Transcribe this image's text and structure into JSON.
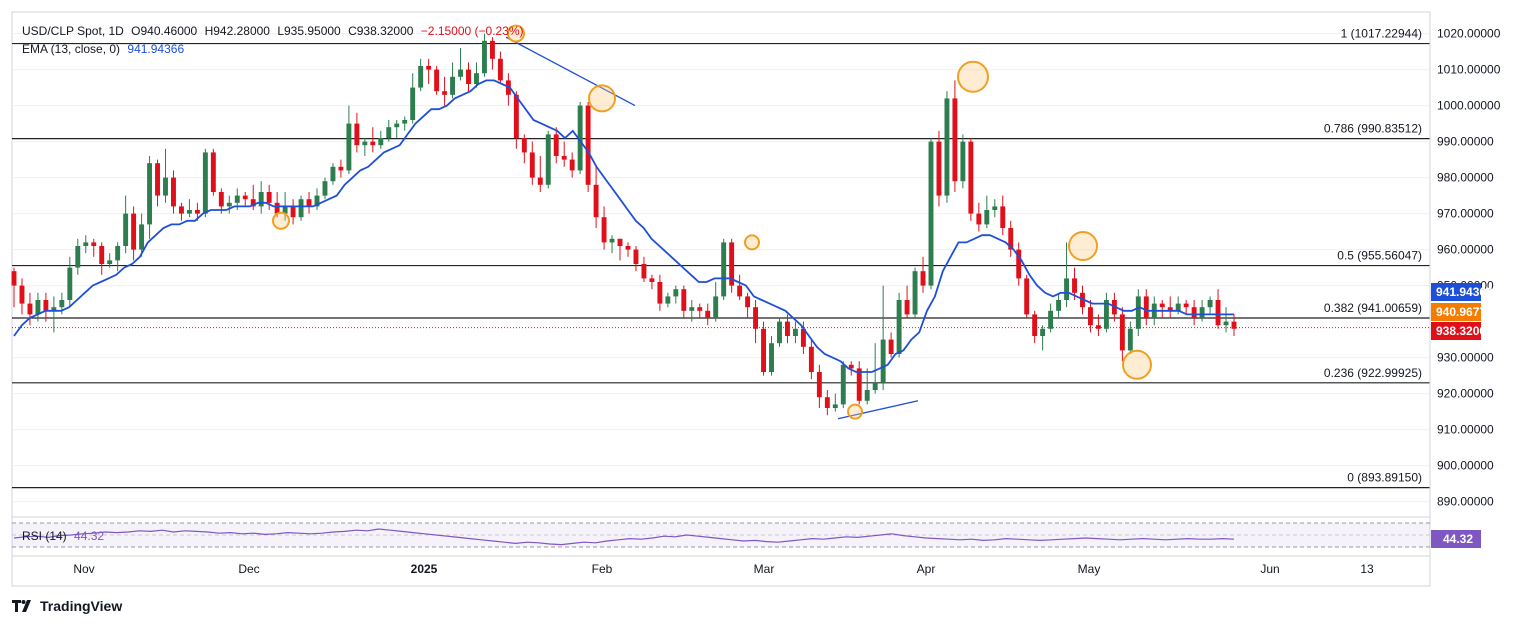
{
  "header": {
    "symbol": "USD/CLP Spot, 1D",
    "open": "O940.46000",
    "high": "H942.28000",
    "low": "L935.95000",
    "close": "C938.32000",
    "change": "−2.15000 (−0.23%)",
    "ema_label": "EMA (13, close, 0)",
    "ema_value": "941.94366"
  },
  "rsi": {
    "label": "RSI (14)",
    "value": "44.32",
    "badge": "44.32"
  },
  "footer": {
    "brand": "TradingView"
  },
  "colors": {
    "up": "#2e7d4f",
    "down": "#e0101b",
    "ema": "#1e4fd8",
    "fib": "#222222",
    "rsi": "#7e57c2",
    "marker": "#f0a020"
  },
  "price_labels": {
    "ema": "941.94366",
    "open": "940.96772",
    "last": "938.32000"
  },
  "chart_data": {
    "type": "candlestick",
    "x_labels": [
      "Nov",
      "Dec",
      "2025",
      "Feb",
      "Mar",
      "Apr",
      "May",
      "Jun",
      "13"
    ],
    "y_ticks": [
      "1020.00000",
      "1010.00000",
      "1000.00000",
      "990.00000",
      "980.00000",
      "970.00000",
      "960.00000",
      "950.00000",
      "930.00000",
      "920.00000",
      "910.00000",
      "900.00000",
      "890.00000"
    ],
    "ylim": [
      886,
      1026
    ],
    "fib_levels": [
      {
        "label": "1 (1017.22944)",
        "value": 1017.22944
      },
      {
        "label": "0.786 (990.83512)",
        "value": 990.83512
      },
      {
        "label": "0.5 (955.56047)",
        "value": 955.56047
      },
      {
        "label": "0.382 (941.00659)",
        "value": 941.00659
      },
      {
        "label": "0.236 (922.99925)",
        "value": 922.99925
      },
      {
        "label": "0 (893.89150)",
        "value": 893.8915
      }
    ],
    "candles": [
      [
        954,
        950,
        955,
        944
      ],
      [
        950,
        945,
        952,
        942
      ],
      [
        945,
        942,
        948,
        939
      ],
      [
        942,
        946,
        948,
        940
      ],
      [
        946,
        943,
        948,
        940
      ],
      [
        943,
        944,
        947,
        937
      ],
      [
        944,
        946,
        948,
        942
      ],
      [
        946,
        955,
        958,
        944
      ],
      [
        955,
        961,
        963,
        953
      ],
      [
        961,
        962,
        964,
        959
      ],
      [
        962,
        961,
        963,
        958
      ],
      [
        961,
        956,
        962,
        953
      ],
      [
        956,
        957,
        959,
        955
      ],
      [
        957,
        961,
        962,
        954
      ],
      [
        961,
        970,
        975,
        959
      ],
      [
        970,
        960,
        972,
        957
      ],
      [
        960,
        967,
        970,
        958
      ],
      [
        967,
        984,
        986,
        963
      ],
      [
        984,
        975,
        985,
        972
      ],
      [
        975,
        980,
        988,
        973
      ],
      [
        980,
        972,
        982,
        970
      ],
      [
        972,
        970,
        973,
        968
      ],
      [
        970,
        971,
        974,
        969
      ],
      [
        971,
        970,
        973,
        968
      ],
      [
        970,
        987,
        988,
        969
      ],
      [
        987,
        976,
        988,
        975
      ],
      [
        976,
        972,
        977,
        970
      ],
      [
        972,
        973,
        975,
        970
      ],
      [
        973,
        975,
        977,
        971
      ],
      [
        975,
        974,
        976,
        972
      ],
      [
        974,
        972,
        978,
        971
      ],
      [
        972,
        976,
        979,
        970
      ],
      [
        976,
        973,
        978,
        971
      ],
      [
        973,
        970,
        976,
        969
      ],
      [
        970,
        972,
        976,
        968
      ],
      [
        972,
        969,
        974,
        967
      ],
      [
        969,
        974,
        975,
        968
      ],
      [
        974,
        972,
        976,
        970
      ],
      [
        972,
        975,
        977,
        971
      ],
      [
        975,
        979,
        980,
        974
      ],
      [
        979,
        983,
        984,
        978
      ],
      [
        983,
        982,
        985,
        980
      ],
      [
        982,
        995,
        1000,
        981
      ],
      [
        995,
        989,
        998,
        987
      ],
      [
        989,
        990,
        991,
        986
      ],
      [
        990,
        989,
        994,
        987
      ],
      [
        989,
        991,
        993,
        988
      ],
      [
        991,
        994,
        996,
        990
      ],
      [
        994,
        995,
        996,
        991
      ],
      [
        995,
        996,
        997,
        993
      ],
      [
        996,
        1005,
        1009,
        995
      ],
      [
        1005,
        1011,
        1013,
        1004
      ],
      [
        1011,
        1010,
        1013,
        1006
      ],
      [
        1010,
        1004,
        1011,
        1003
      ],
      [
        1004,
        1003,
        1008,
        1000
      ],
      [
        1003,
        1008,
        1012,
        1002
      ],
      [
        1008,
        1010,
        1016,
        1007
      ],
      [
        1010,
        1006,
        1012,
        1004
      ],
      [
        1006,
        1009,
        1012,
        1005
      ],
      [
        1009,
        1018,
        1020,
        1008
      ],
      [
        1018,
        1013,
        1019,
        1010
      ],
      [
        1013,
        1007,
        1015,
        1006
      ],
      [
        1007,
        1003,
        1009,
        1000
      ],
      [
        1003,
        991,
        1004,
        988
      ],
      [
        991,
        987,
        992,
        984
      ],
      [
        987,
        980,
        990,
        978
      ],
      [
        980,
        978,
        986,
        976
      ],
      [
        978,
        992,
        993,
        977
      ],
      [
        992,
        986,
        994,
        984
      ],
      [
        986,
        985,
        990,
        983
      ],
      [
        985,
        982,
        987,
        980
      ],
      [
        982,
        1000,
        1001,
        981
      ],
      [
        1000,
        978,
        1001,
        976
      ],
      [
        978,
        969,
        983,
        966
      ],
      [
        969,
        962,
        972,
        960
      ],
      [
        962,
        963,
        964,
        959
      ],
      [
        963,
        961,
        963,
        957
      ],
      [
        961,
        960,
        962,
        958
      ],
      [
        960,
        956,
        961,
        954
      ],
      [
        956,
        952,
        958,
        951
      ],
      [
        952,
        951,
        953,
        949
      ],
      [
        951,
        945,
        953,
        943
      ],
      [
        945,
        947,
        948,
        944
      ],
      [
        947,
        949,
        950,
        945
      ],
      [
        949,
        943,
        950,
        941
      ],
      [
        943,
        944,
        946,
        940
      ],
      [
        944,
        943,
        945,
        941
      ],
      [
        943,
        941,
        945,
        939
      ],
      [
        941,
        947,
        951,
        940
      ],
      [
        947,
        962,
        963,
        946
      ],
      [
        962,
        950,
        963,
        948
      ],
      [
        950,
        947,
        953,
        946
      ],
      [
        947,
        944,
        948,
        941
      ],
      [
        944,
        938,
        946,
        934
      ],
      [
        938,
        926,
        940,
        925
      ],
      [
        926,
        934,
        936,
        925
      ],
      [
        934,
        940,
        941,
        933
      ],
      [
        940,
        936,
        942,
        934
      ],
      [
        936,
        938,
        940,
        934
      ],
      [
        938,
        933,
        940,
        931
      ],
      [
        933,
        926,
        935,
        924
      ],
      [
        926,
        919,
        928,
        916
      ],
      [
        919,
        916,
        921,
        914
      ],
      [
        916,
        917,
        920,
        915
      ],
      [
        917,
        928,
        929,
        916
      ],
      [
        928,
        927,
        929,
        925
      ],
      [
        927,
        918,
        929,
        917
      ],
      [
        918,
        921,
        927,
        917
      ],
      [
        921,
        923,
        934,
        920
      ],
      [
        923,
        935,
        950,
        921
      ],
      [
        935,
        931,
        937,
        930
      ],
      [
        931,
        946,
        948,
        930
      ],
      [
        946,
        942,
        950,
        941
      ],
      [
        942,
        954,
        955,
        941
      ],
      [
        954,
        950,
        958,
        948
      ],
      [
        950,
        990,
        991,
        949
      ],
      [
        990,
        975,
        993,
        972
      ],
      [
        975,
        1002,
        1004,
        973
      ],
      [
        1002,
        979,
        1007,
        976
      ],
      [
        979,
        990,
        992,
        977
      ],
      [
        990,
        970,
        991,
        968
      ],
      [
        970,
        967,
        973,
        965
      ],
      [
        967,
        971,
        975,
        966
      ],
      [
        971,
        972,
        974,
        969
      ],
      [
        972,
        966,
        975,
        964
      ],
      [
        966,
        960,
        968,
        958
      ],
      [
        960,
        952,
        962,
        950
      ],
      [
        952,
        942,
        953,
        941
      ],
      [
        942,
        936,
        943,
        934
      ],
      [
        936,
        938,
        939,
        932
      ],
      [
        938,
        943,
        945,
        937
      ],
      [
        943,
        946,
        948,
        941
      ],
      [
        946,
        952,
        962,
        944
      ],
      [
        952,
        948,
        955,
        946
      ],
      [
        948,
        944,
        950,
        942
      ],
      [
        944,
        939,
        946,
        937
      ],
      [
        939,
        938,
        942,
        936
      ],
      [
        938,
        946,
        948,
        937
      ],
      [
        946,
        942,
        948,
        940
      ],
      [
        942,
        932,
        944,
        929
      ],
      [
        932,
        938,
        940,
        931
      ],
      [
        938,
        947,
        949,
        936
      ],
      [
        947,
        941,
        949,
        939
      ],
      [
        941,
        945,
        947,
        939
      ],
      [
        945,
        944,
        946,
        941
      ],
      [
        944,
        943,
        947,
        941
      ],
      [
        943,
        945,
        947,
        942
      ],
      [
        945,
        944,
        946,
        942
      ],
      [
        944,
        941,
        946,
        939
      ],
      [
        941,
        944,
        946,
        940
      ],
      [
        944,
        946,
        947,
        942
      ],
      [
        946,
        939,
        949,
        938
      ],
      [
        939,
        940,
        944,
        937
      ],
      [
        940,
        938,
        942,
        936
      ]
    ],
    "ema13": [
      936,
      939,
      941,
      942,
      943,
      943,
      943,
      944,
      946,
      948,
      950,
      951,
      952,
      953,
      955,
      956,
      958,
      962,
      964,
      966,
      967,
      967,
      968,
      968,
      970,
      971,
      971,
      971,
      972,
      972,
      972,
      973,
      973,
      972,
      972,
      972,
      972,
      972,
      972,
      973,
      974,
      975,
      978,
      980,
      982,
      983,
      985,
      987,
      988,
      989,
      992,
      995,
      997,
      999,
      999,
      1000,
      1002,
      1003,
      1004,
      1006,
      1007,
      1007,
      1006,
      1005,
      1002,
      999,
      996,
      995,
      994,
      993,
      991,
      993,
      990,
      987,
      983,
      980,
      977,
      974,
      971,
      968,
      966,
      963,
      961,
      959,
      957,
      955,
      953,
      951,
      951,
      952,
      952,
      952,
      951,
      950,
      947,
      946,
      945,
      944,
      943,
      941,
      939,
      936,
      933,
      931,
      930,
      929,
      927,
      926,
      926,
      926,
      927,
      928,
      931,
      932,
      935,
      937,
      943,
      947,
      954,
      958,
      962,
      962,
      963,
      964,
      964,
      963,
      962,
      960,
      957,
      953,
      950,
      948,
      947,
      948,
      948,
      947,
      946,
      945,
      945,
      945,
      944,
      943,
      943,
      944,
      943,
      943,
      943,
      943,
      943,
      942,
      942,
      942,
      942,
      942,
      942,
      942
    ],
    "rsi_values": [
      45,
      47,
      48,
      46,
      49,
      50,
      52,
      53,
      55,
      54,
      55,
      57,
      56,
      58,
      55,
      57,
      56,
      55,
      53,
      54,
      52,
      53,
      51,
      52,
      54,
      53,
      52,
      53,
      55,
      56,
      58,
      57,
      60,
      58,
      56,
      54,
      52,
      50,
      48,
      46,
      44,
      42,
      40,
      38,
      36,
      38,
      37,
      35,
      34,
      36,
      38,
      37,
      40,
      42,
      44,
      43,
      45,
      48,
      47,
      50,
      48,
      46,
      44,
      42,
      40,
      41,
      39,
      38,
      40,
      42,
      44,
      43,
      45,
      47,
      46,
      48,
      50,
      52,
      49,
      47,
      45,
      44,
      43,
      42,
      43,
      41,
      42,
      44,
      43,
      42,
      41,
      42,
      43,
      44,
      45,
      44,
      43,
      42,
      43,
      44,
      43,
      42,
      43,
      44,
      43,
      43,
      44,
      43
    ]
  }
}
